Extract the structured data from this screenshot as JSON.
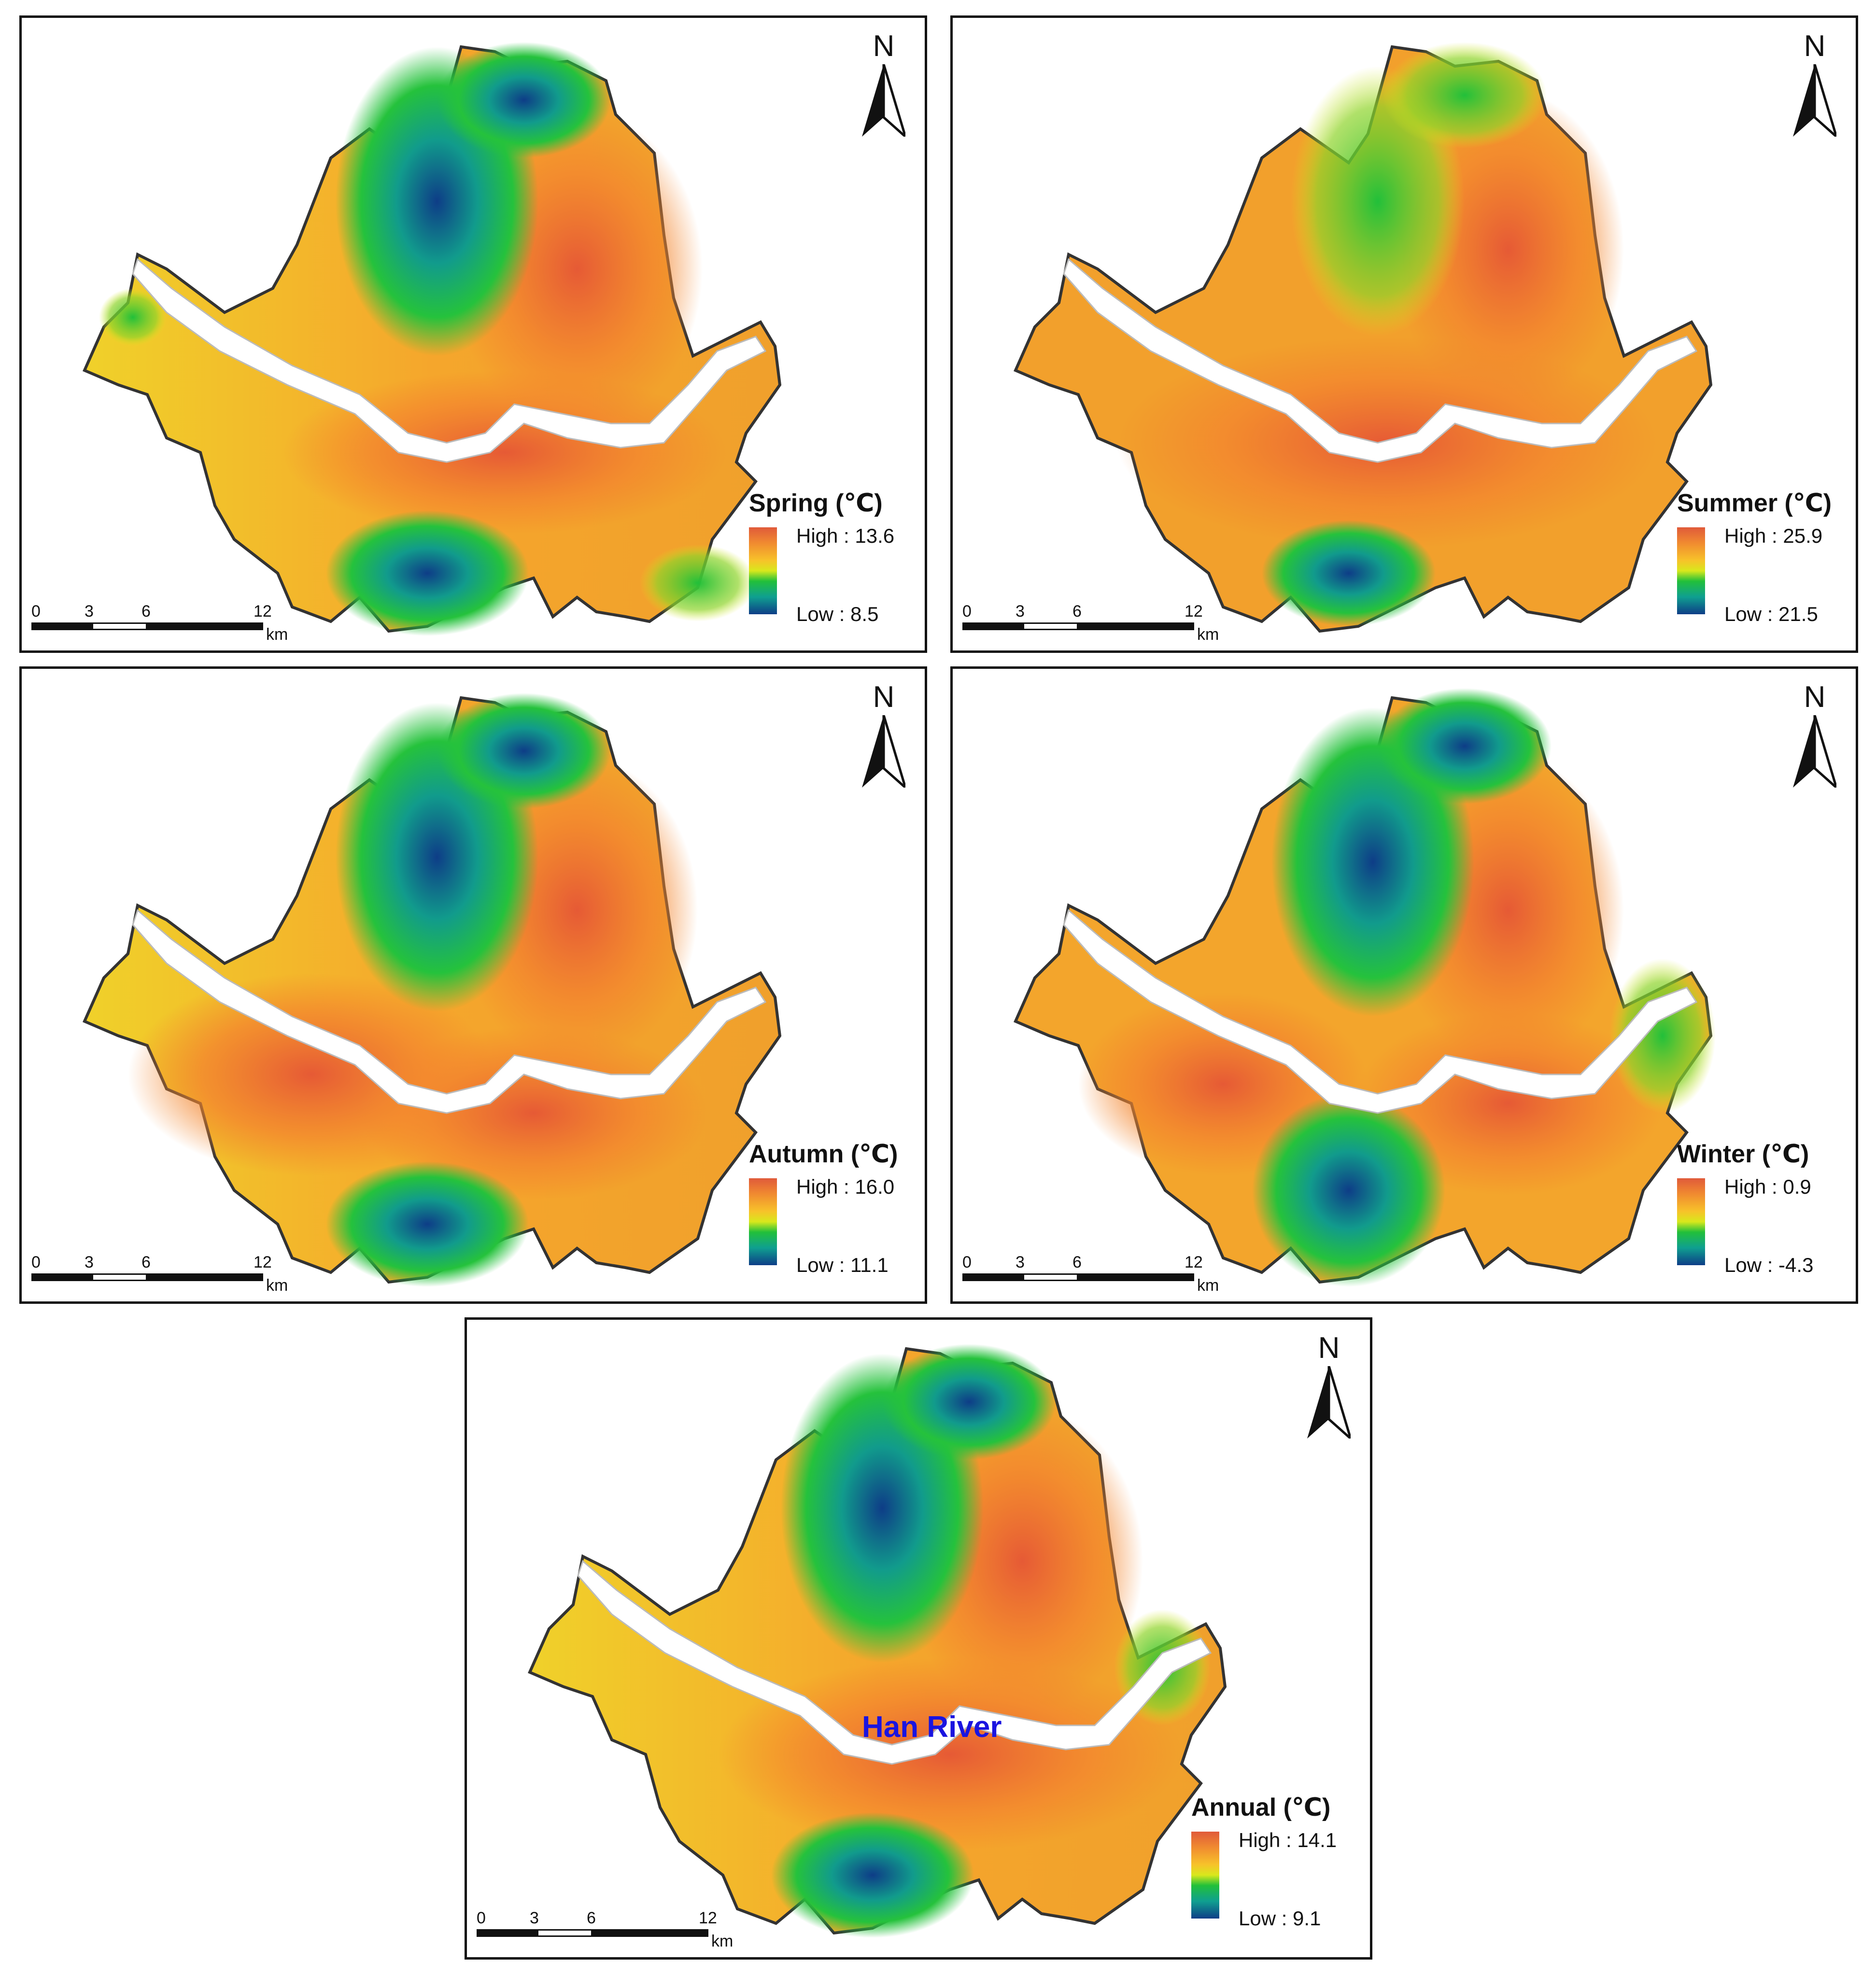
{
  "panels": [
    {
      "id": "spring",
      "title": "Spring (℃)",
      "high": "High : 13.6",
      "low": "Low : 8.5"
    },
    {
      "id": "summer",
      "title": "Summer (℃)",
      "high": "High : 25.9",
      "low": "Low : 21.5"
    },
    {
      "id": "autumn",
      "title": "Autumn (℃)",
      "high": "High : 16.0",
      "low": "Low : 11.1"
    },
    {
      "id": "winter",
      "title": "Winter (℃)",
      "high": "High : 0.9",
      "low": "Low : -4.3"
    },
    {
      "id": "annual",
      "title": "Annual (℃)",
      "high": "High : 14.1",
      "low": "Low : 9.1",
      "river_label": "Han River"
    }
  ],
  "north_label": "N",
  "scale_bar": {
    "ticks": [
      "0",
      "3",
      "6",
      "12"
    ],
    "unit": "km"
  },
  "colors": {
    "high": "#e05a3a",
    "mid": "#f7c22a",
    "green": "#22c03a",
    "low": "#0e3d87",
    "river": "#ffffff",
    "border": "#333333"
  }
}
